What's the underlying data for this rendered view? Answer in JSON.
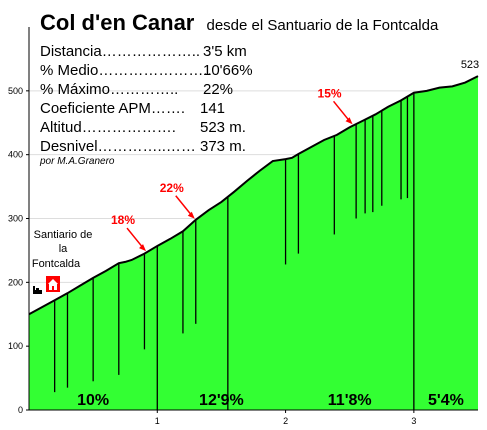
{
  "header": {
    "title": "Col d'en Canar",
    "subtitle": "desde el Santuario de la Fontcalda"
  },
  "stats": [
    {
      "label": "Distancia………………..",
      "value": "3'5 km"
    },
    {
      "label": "% Medio…………………..",
      "value": "10'66%"
    },
    {
      "label": "% Máximo…………..",
      "value": "22%"
    },
    {
      "label": "Coeficiente APM…….",
      "value": "141"
    },
    {
      "label": "Altitud……………….",
      "value": "523 m."
    },
    {
      "label": "Desnivel…………..……",
      "value": "373 m."
    }
  ],
  "author": "por M.A.Granero",
  "start_label": [
    "Santiario de",
    "la",
    "Fontcalda"
  ],
  "colors": {
    "fill": "#33ff33",
    "line": "#000000",
    "annotation": "#ff0000"
  },
  "chart_data": {
    "type": "area",
    "x": [
      0.0,
      0.1,
      0.2,
      0.3,
      0.4,
      0.5,
      0.6,
      0.7,
      0.75,
      0.8,
      0.9,
      1.0,
      1.1,
      1.2,
      1.3,
      1.4,
      1.5,
      1.6,
      1.7,
      1.8,
      1.9,
      2.0,
      2.05,
      2.1,
      2.2,
      2.3,
      2.4,
      2.5,
      2.6,
      2.7,
      2.8,
      2.9,
      3.0,
      3.1,
      3.2,
      3.3,
      3.4,
      3.5
    ],
    "y": [
      150,
      161,
      172,
      183,
      195,
      207,
      218,
      230,
      232,
      235,
      245,
      257,
      268,
      280,
      298,
      313,
      326,
      342,
      359,
      375,
      390,
      393,
      395,
      401,
      412,
      423,
      431,
      443,
      453,
      463,
      475,
      485,
      497,
      500,
      505,
      507,
      513,
      523
    ],
    "xlim": [
      0,
      3.5
    ],
    "ylim": [
      0,
      600
    ],
    "xticks": [
      1,
      2,
      3
    ],
    "yticks": [
      0,
      100,
      200,
      300,
      400,
      500
    ],
    "end_label": "523",
    "segments": [
      {
        "label": "10%",
        "x": 0.5
      },
      {
        "label": "12'9%",
        "x": 1.5
      },
      {
        "label": "11'8%",
        "x": 2.5
      },
      {
        "label": "5'4%",
        "x": 3.25
      }
    ],
    "max_gradients": [
      {
        "label": "18%",
        "x": 0.92
      },
      {
        "label": "22%",
        "x": 1.3
      },
      {
        "label": "15%",
        "x": 2.53
      }
    ],
    "drop_lines": [
      {
        "x": 0.2,
        "bottom": 28
      },
      {
        "x": 0.3,
        "bottom": 35
      },
      {
        "x": 0.5,
        "bottom": 45
      },
      {
        "x": 0.7,
        "bottom": 55
      },
      {
        "x": 0.9,
        "bottom": 95
      },
      {
        "x": 1.0,
        "bottom": 0
      },
      {
        "x": 1.2,
        "bottom": 120
      },
      {
        "x": 1.3,
        "bottom": 135
      },
      {
        "x": 1.55,
        "bottom": 0
      },
      {
        "x": 2.0,
        "bottom": 228
      },
      {
        "x": 2.1,
        "bottom": 245
      },
      {
        "x": 2.38,
        "bottom": 275
      },
      {
        "x": 2.55,
        "bottom": 300
      },
      {
        "x": 2.62,
        "bottom": 308
      },
      {
        "x": 2.68,
        "bottom": 310
      },
      {
        "x": 2.75,
        "bottom": 320
      },
      {
        "x": 2.9,
        "bottom": 330
      },
      {
        "x": 2.95,
        "bottom": 332
      },
      {
        "x": 3.0,
        "bottom": 0
      }
    ]
  }
}
